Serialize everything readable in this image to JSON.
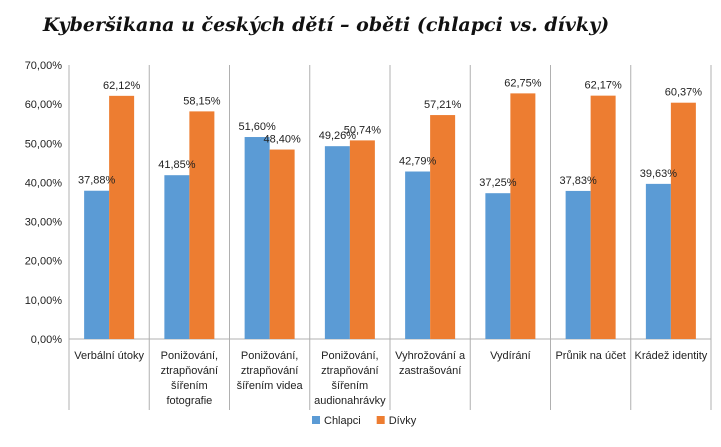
{
  "chart_data": {
    "type": "bar",
    "title": "Kyberšikana u českých dětí – oběti (chlapci vs. dívky)",
    "xlabel": "",
    "ylabel": "",
    "ylim": [
      0,
      70
    ],
    "yticks": [
      "0,00%",
      "10,00%",
      "20,00%",
      "30,00%",
      "40,00%",
      "50,00%",
      "60,00%",
      "70,00%"
    ],
    "grid": false,
    "legend_position": "bottom",
    "categories": [
      [
        "Verbální útoky"
      ],
      [
        "Ponižování,",
        "ztrapňování",
        "šířením",
        "fotografie"
      ],
      [
        "Ponižování,",
        "ztrapňování",
        "šířením videa"
      ],
      [
        "Ponižování,",
        "ztrapňování",
        "šířením",
        "audionahrávky"
      ],
      [
        "Vyhrožování a",
        "zastrašování"
      ],
      [
        "Vydírání"
      ],
      [
        "Průnik na účet"
      ],
      [
        "Krádež identity"
      ]
    ],
    "series": [
      {
        "name": "Chlapci",
        "color": "#5B9BD5",
        "values": [
          37.88,
          41.85,
          51.6,
          49.26,
          42.79,
          37.25,
          37.83,
          39.63
        ],
        "labels": [
          "37,88%",
          "41,85%",
          "51,60%",
          "49,26%",
          "42,79%",
          "37,25%",
          "37,83%",
          "39,63%"
        ]
      },
      {
        "name": "Dívky",
        "color": "#ED7D31",
        "values": [
          62.12,
          58.15,
          48.4,
          50.74,
          57.21,
          62.75,
          62.17,
          60.37
        ],
        "labels": [
          "62,12%",
          "58,15%",
          "48,40%",
          "50,74%",
          "57,21%",
          "62,75%",
          "62,17%",
          "60,37%"
        ]
      }
    ]
  }
}
